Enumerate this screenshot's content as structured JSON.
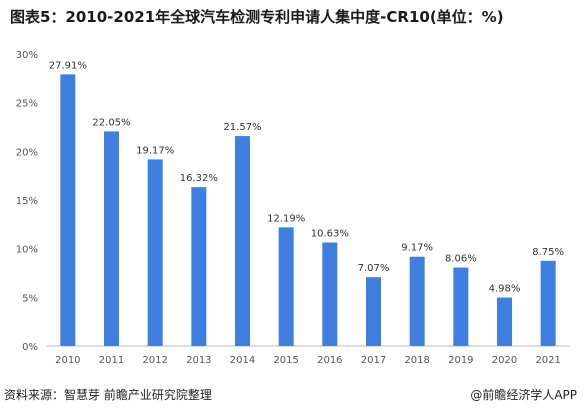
{
  "title": "图表5：2010-2021年全球汽车检测专利申请人集中度-CR10(单位：%)",
  "footer": {
    "source": "资料来源：智慧芽 前瞻产业研究院整理",
    "brand": "@前瞻经济学人APP"
  },
  "colors": {
    "bar": "#3f7fe0",
    "axis": "#bdbdbd"
  },
  "chart_data": {
    "type": "bar",
    "title": "图表5：2010-2021年全球汽车检测专利申请人集中度-CR10(单位：%)",
    "xlabel": "",
    "ylabel": "",
    "ylim": [
      0,
      30
    ],
    "yticks": [
      0,
      5,
      10,
      15,
      20,
      25,
      30
    ],
    "ytick_labels": [
      "0%",
      "5%",
      "10%",
      "15%",
      "20%",
      "25%",
      "30%"
    ],
    "grid": false,
    "categories": [
      "2010",
      "2011",
      "2012",
      "2013",
      "2014",
      "2015",
      "2016",
      "2017",
      "2018",
      "2019",
      "2020",
      "2021"
    ],
    "values": [
      27.91,
      22.05,
      19.17,
      16.32,
      21.57,
      12.19,
      10.63,
      7.07,
      9.17,
      8.06,
      4.98,
      8.75
    ],
    "data_labels": [
      "27.91%",
      "22.05%",
      "19.17%",
      "16.32%",
      "21.57%",
      "12.19%",
      "10.63%",
      "7.07%",
      "9.17%",
      "8.06%",
      "4.98%",
      "8.75%"
    ]
  }
}
